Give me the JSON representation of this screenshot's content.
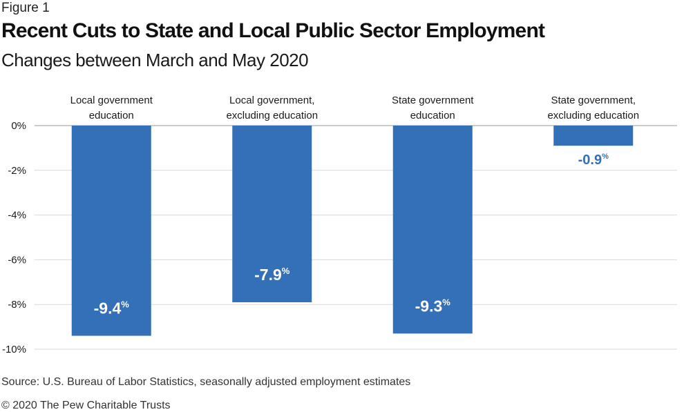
{
  "header": {
    "figure_label": "Figure 1",
    "title": "Recent Cuts to State and Local Public Sector Employment",
    "subtitle": "Changes between March and May 2020"
  },
  "footer": {
    "source": "Source: U.S. Bureau of Labor Statistics, seasonally adjusted employment estimates",
    "copyright": "© 2020 The Pew Charitable Trusts"
  },
  "colors": {
    "bar": "#3370b7",
    "gridline": "#d9d9d9",
    "inside_label": "#ffffff",
    "outside_label": "#3370b7"
  },
  "chart_data": {
    "type": "bar",
    "categories": [
      [
        "Local government",
        "education"
      ],
      [
        "Local government,",
        "excluding education"
      ],
      [
        "State government",
        "education"
      ],
      [
        "State government,",
        "excluding education"
      ]
    ],
    "values": [
      -9.4,
      -7.9,
      -9.3,
      -0.9
    ],
    "value_labels": [
      "-9.4",
      "-7.9",
      "-9.3",
      "-0.9"
    ],
    "value_suffix": "%",
    "ylim": [
      -10,
      0
    ],
    "yticks": [
      0,
      -2,
      -4,
      -6,
      -8,
      -10
    ],
    "ytick_labels": [
      "0%",
      "-2%",
      "-4%",
      "-6%",
      "-8%",
      "-10%"
    ],
    "grid": true,
    "legend": "none"
  }
}
